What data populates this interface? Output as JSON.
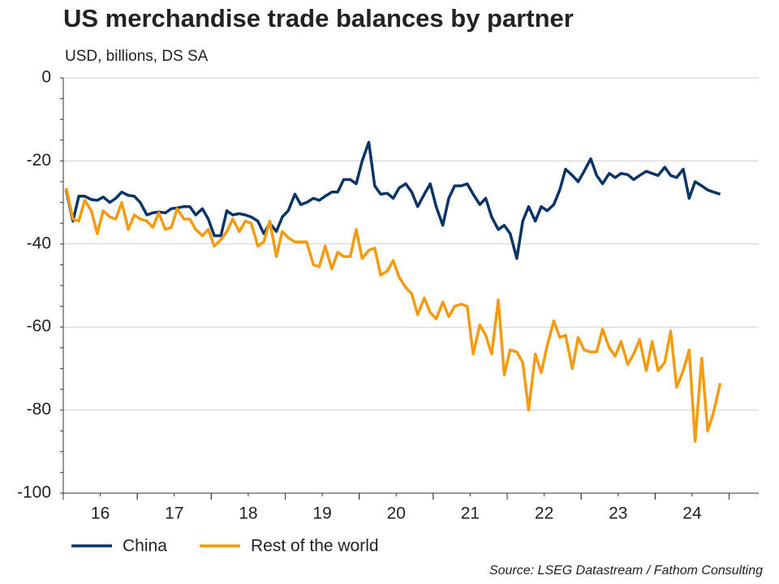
{
  "chart_data": {
    "type": "line",
    "title": "US merchandise trade balances by partner",
    "subtitle": "USD, billions, DS SA",
    "source": "Source: LSEG Datastream / Fathom Consulting",
    "x": [
      2016.04,
      2016.13,
      2016.21,
      2016.29,
      2016.38,
      2016.46,
      2016.54,
      2016.63,
      2016.71,
      2016.79,
      2016.88,
      2016.96,
      2017.04,
      2017.13,
      2017.21,
      2017.29,
      2017.38,
      2017.46,
      2017.54,
      2017.63,
      2017.71,
      2017.79,
      2017.88,
      2017.96,
      2018.04,
      2018.13,
      2018.21,
      2018.29,
      2018.38,
      2018.46,
      2018.54,
      2018.63,
      2018.71,
      2018.79,
      2018.88,
      2018.96,
      2019.04,
      2019.13,
      2019.21,
      2019.29,
      2019.38,
      2019.46,
      2019.54,
      2019.63,
      2019.71,
      2019.79,
      2019.88,
      2019.96,
      2020.04,
      2020.13,
      2020.21,
      2020.29,
      2020.38,
      2020.46,
      2020.54,
      2020.63,
      2020.71,
      2020.79,
      2020.88,
      2020.96,
      2021.04,
      2021.13,
      2021.21,
      2021.29,
      2021.38,
      2021.46,
      2021.54,
      2021.63,
      2021.71,
      2021.79,
      2021.88,
      2021.96,
      2022.04,
      2022.13,
      2022.21,
      2022.29,
      2022.38,
      2022.46,
      2022.54,
      2022.63,
      2022.71,
      2022.79,
      2022.88,
      2022.96,
      2023.04,
      2023.13,
      2023.21,
      2023.29,
      2023.38,
      2023.46,
      2023.54,
      2023.63,
      2023.71,
      2023.79,
      2023.88,
      2023.96,
      2024.04,
      2024.13,
      2024.21,
      2024.29,
      2024.38,
      2024.46,
      2024.54,
      2024.63,
      2024.71,
      2024.79,
      2024.88
    ],
    "series": [
      {
        "name": "China",
        "color": "#0b3466",
        "values": [
          -27,
          -34.5,
          -28.5,
          -28.5,
          -29.3,
          -29.5,
          -28.7,
          -30,
          -29,
          -27.5,
          -28.3,
          -28.5,
          -30,
          -33,
          -32.5,
          -32.3,
          -32.5,
          -31.5,
          -31.3,
          -31,
          -31,
          -33,
          -31.5,
          -34,
          -38,
          -38,
          -32,
          -33,
          -32.7,
          -33,
          -33.5,
          -34.5,
          -37.5,
          -35,
          -37,
          -33.5,
          -32,
          -28,
          -30.5,
          -30,
          -29,
          -29.5,
          -28.5,
          -27.5,
          -27.5,
          -24.5,
          -24.5,
          -25.5,
          -20,
          -15.5,
          -26,
          -28,
          -27.8,
          -29,
          -26.5,
          -25.5,
          -27.5,
          -31,
          -28,
          -25.5,
          -31,
          -35.5,
          -29,
          -26,
          -26,
          -25.5,
          -28,
          -30.5,
          -29,
          -33.5,
          -36.5,
          -35.5,
          -37.5,
          -43.5,
          -34.5,
          -31,
          -34.5,
          -31,
          -32,
          -30.5,
          -27,
          -22,
          -23.5,
          -25,
          -22.5,
          -19.5,
          -23.5,
          -25.5,
          -23,
          -24,
          -23,
          -23.3,
          -24.5,
          -23.5,
          -22.5,
          -23,
          -23.5,
          -21.5,
          -23.5,
          -24,
          -22,
          -29,
          -25,
          -26,
          -27,
          -27.5,
          -28
        ]
      },
      {
        "name": "Rest of the world",
        "color": "#f39c12",
        "values": [
          -26.5,
          -34,
          -34.5,
          -29.5,
          -32,
          -37.5,
          -32,
          -33.5,
          -34,
          -30,
          -36.5,
          -33,
          -34,
          -34.5,
          -36,
          -32.5,
          -36.5,
          -36,
          -31.5,
          -34,
          -34,
          -36.5,
          -38,
          -36.5,
          -40.5,
          -39,
          -37,
          -34,
          -37,
          -34.5,
          -35,
          -40.5,
          -39.5,
          -34.5,
          -43,
          -37,
          -38.5,
          -39.5,
          -39.5,
          -39.5,
          -45,
          -45.5,
          -40.5,
          -46,
          -42,
          -43,
          -43,
          -36.5,
          -43.5,
          -41.5,
          -41,
          -47.5,
          -46.5,
          -44,
          -48,
          -50.5,
          -52,
          -57,
          -53,
          -56.5,
          -58,
          -54,
          -57.5,
          -55,
          -54.5,
          -55,
          -66.5,
          -59.5,
          -62,
          -66.5,
          -53.5,
          -71.5,
          -65.5,
          -66,
          -68.5,
          -80,
          -66.5,
          -71,
          -64.5,
          -58.5,
          -62.5,
          -62,
          -70,
          -62.5,
          -65.5,
          -66,
          -66,
          -60.5,
          -65,
          -67,
          -63.5,
          -69,
          -66.5,
          -63,
          -70.5,
          -63.5,
          -70.5,
          -68.5,
          -61,
          -74.5,
          -70.5,
          -65.5,
          -87.5,
          -67.5,
          -85,
          -80.5,
          -73.5
        ]
      }
    ],
    "xlim": [
      2016,
      2025.4
    ],
    "xticks": [
      {
        "value": 2016.5,
        "label": "16"
      },
      {
        "value": 2017.5,
        "label": "17"
      },
      {
        "value": 2018.5,
        "label": "18"
      },
      {
        "value": 2019.5,
        "label": "19"
      },
      {
        "value": 2020.5,
        "label": "20"
      },
      {
        "value": 2021.5,
        "label": "21"
      },
      {
        "value": 2022.5,
        "label": "22"
      },
      {
        "value": 2023.5,
        "label": "23"
      },
      {
        "value": 2024.5,
        "label": "24"
      }
    ],
    "ylim": [
      -100,
      0
    ],
    "yticks": [
      0,
      -20,
      -40,
      -60,
      -80,
      -100
    ],
    "grid": true
  }
}
